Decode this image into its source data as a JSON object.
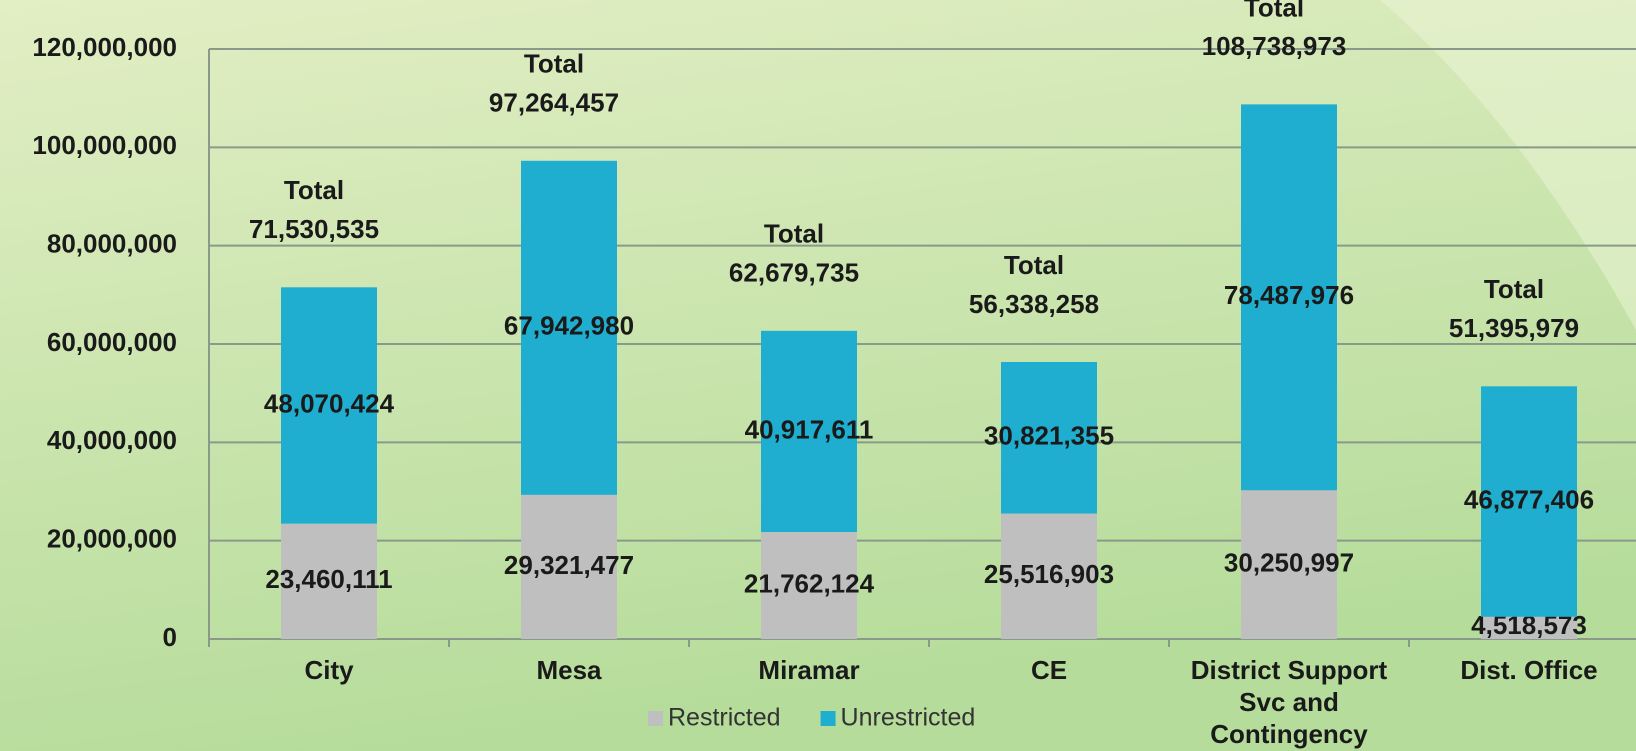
{
  "chart_data": {
    "type": "stacked_bar",
    "categories": [
      "City",
      "Mesa",
      "Miramar",
      "CE",
      "District Support Svc and Contingency",
      "Dist. Office"
    ],
    "series": [
      {
        "name": "Restricted",
        "color": "#bfbfbf",
        "values": [
          23460111,
          29321477,
          21762124,
          25516903,
          30250997,
          4518573
        ],
        "value_labels": [
          "23,460,111",
          "29,321,477",
          "21,762,124",
          "25,516,903",
          "30,250,997",
          "4,518,573"
        ]
      },
      {
        "name": "Unrestricted",
        "color": "#1faecf",
        "values": [
          48070424,
          67942980,
          40917611,
          30821355,
          78487976,
          46877406
        ],
        "value_labels": [
          "48,070,424",
          "67,942,980",
          "40,917,611",
          "30,821,355",
          "78,487,976",
          "46,877,406"
        ]
      }
    ],
    "total_label": "Total",
    "totals": [
      "71,530,535",
      "97,264,457",
      "62,679,735",
      "56,338,258",
      "108,738,973",
      "51,395,979"
    ],
    "ylim": [
      0,
      120000000
    ],
    "yticks": [
      0,
      {
        "value": 20000000,
        "label": "20,000,000"
      },
      {
        "value": 40000000,
        "label": "40,000,000"
      },
      {
        "value": 60000000,
        "label": "60,000,000"
      },
      {
        "value": 80000000,
        "label": "80,000,000"
      },
      {
        "value": 100000000,
        "label": "100,000,000"
      },
      {
        "value": 120000000,
        "label": "120,000,000"
      }
    ],
    "grid": true,
    "legend": "bottom"
  }
}
